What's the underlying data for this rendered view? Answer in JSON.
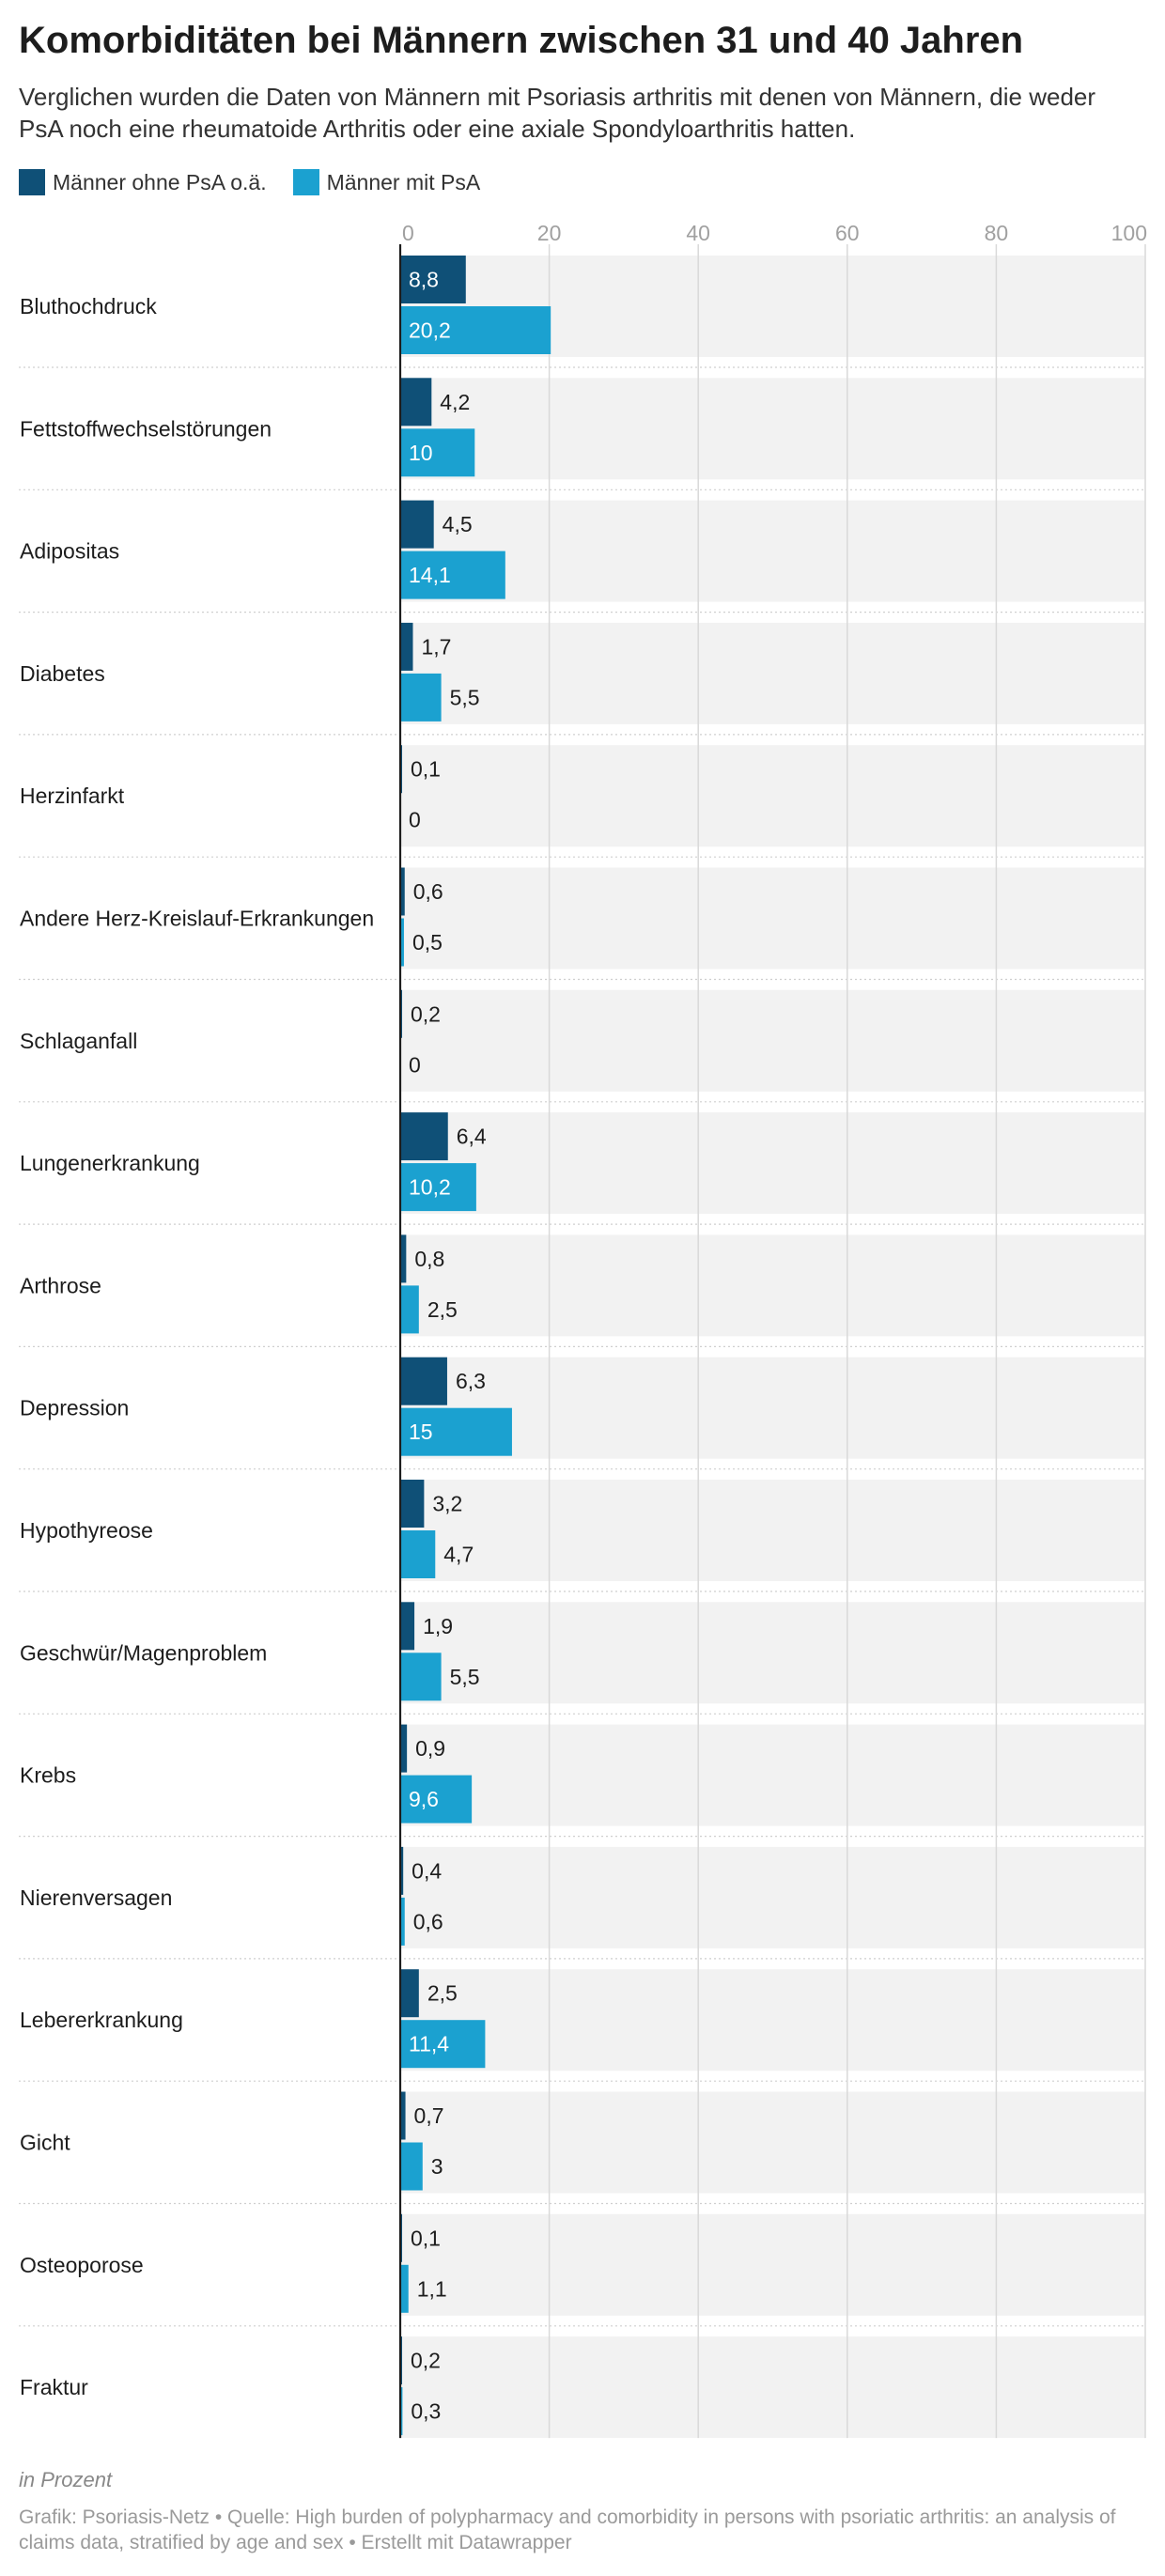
{
  "header": {
    "title": "Komorbiditäten bei Männern zwischen 31 und 40 Jahren",
    "subtitle": "Verglichen wurden die Daten von Männern mit Psoriasis arthritis mit denen von Männern, die weder PsA noch eine rheumatoide Arthritis oder eine axiale Spondyloarthritis hatten."
  },
  "legend": [
    {
      "label": "Männer ohne PsA o.ä.",
      "color": "#0f5077"
    },
    {
      "label": "Männer mit PsA",
      "color": "#1ba1d0"
    }
  ],
  "footer": {
    "note": "in Prozent",
    "credit": "Grafik: Psoriasis-Netz • Quelle: High burden of polypharmacy and comorbidity in persons with psoriatic arthritis: an analysis of claims data, stratified by age and sex • Erstellt mit Datawrapper"
  },
  "chart_data": {
    "type": "bar",
    "orientation": "horizontal",
    "title": "Komorbiditäten bei Männern zwischen 31 und 40 Jahren",
    "xlim": [
      0,
      100
    ],
    "x_ticks": [
      0,
      20,
      40,
      60,
      80,
      100
    ],
    "grid": true,
    "legend_position": "top-left",
    "categories": [
      "Bluthochdruck",
      "Fettstoffwechselstörungen",
      "Adipositas",
      "Diabetes",
      "Herzinfarkt",
      "Andere Herz-Kreislauf-Erkrankungen",
      "Schlaganfall",
      "Lungenerkrankung",
      "Arthrose",
      "Depression",
      "Hypothyreose",
      "Geschwür/Magenproblem",
      "Krebs",
      "Nierenversagen",
      "Lebererkrankung",
      "Gicht",
      "Osteoporose",
      "Fraktur"
    ],
    "series": [
      {
        "name": "Männer ohne PsA o.ä.",
        "color": "#0f5077",
        "values": [
          8.8,
          4.2,
          4.5,
          1.7,
          0.1,
          0.6,
          0.2,
          6.4,
          0.8,
          6.3,
          3.2,
          1.9,
          0.9,
          0.4,
          2.5,
          0.7,
          0.1,
          0.2
        ]
      },
      {
        "name": "Männer mit PsA",
        "color": "#1ba1d0",
        "values": [
          20.2,
          10,
          14.1,
          5.5,
          0,
          0.5,
          0,
          10.2,
          2.5,
          15,
          4.7,
          5.5,
          9.6,
          0.6,
          11.4,
          3,
          1.1,
          0.3
        ]
      }
    ]
  }
}
